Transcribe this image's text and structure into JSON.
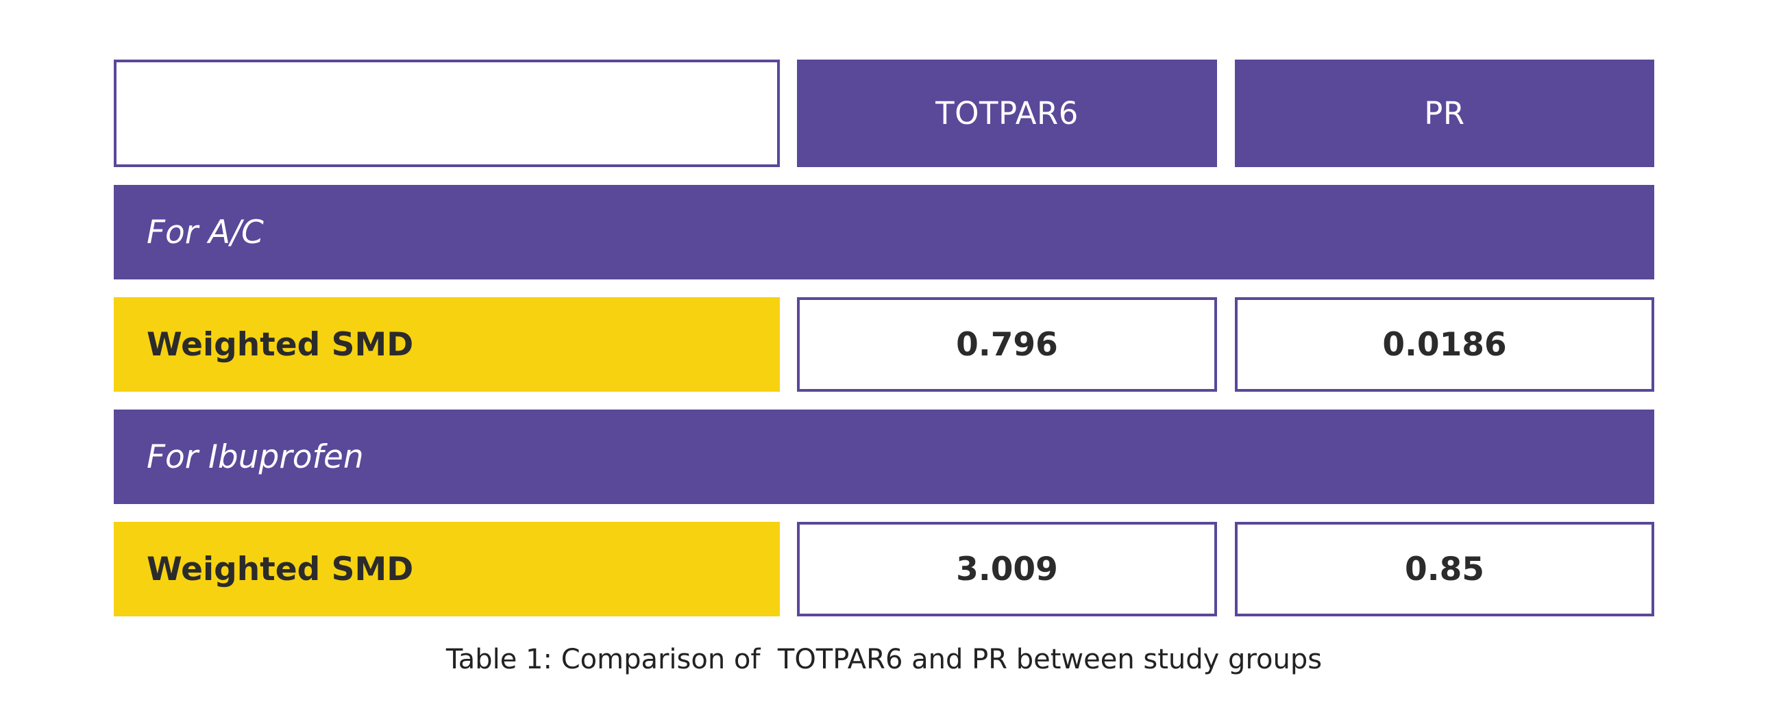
{
  "table": {
    "header": {
      "corner": "",
      "columns": [
        "TOTPAR6",
        "PR"
      ]
    },
    "groups": [
      {
        "title": "For A/C",
        "row_label": "Weighted SMD",
        "values": [
          "0.796",
          "0.0186"
        ]
      },
      {
        "title": "For Ibuprofen",
        "row_label": "Weighted SMD",
        "values": [
          "3.009",
          "0.85"
        ]
      }
    ],
    "caption": "Table 1: Comparison of  TOTPAR6 and PR between study groups"
  },
  "colors": {
    "accent_purple": "#5a4899",
    "highlight_yellow": "#f7d210",
    "text_dark": "#2b2b2b"
  }
}
